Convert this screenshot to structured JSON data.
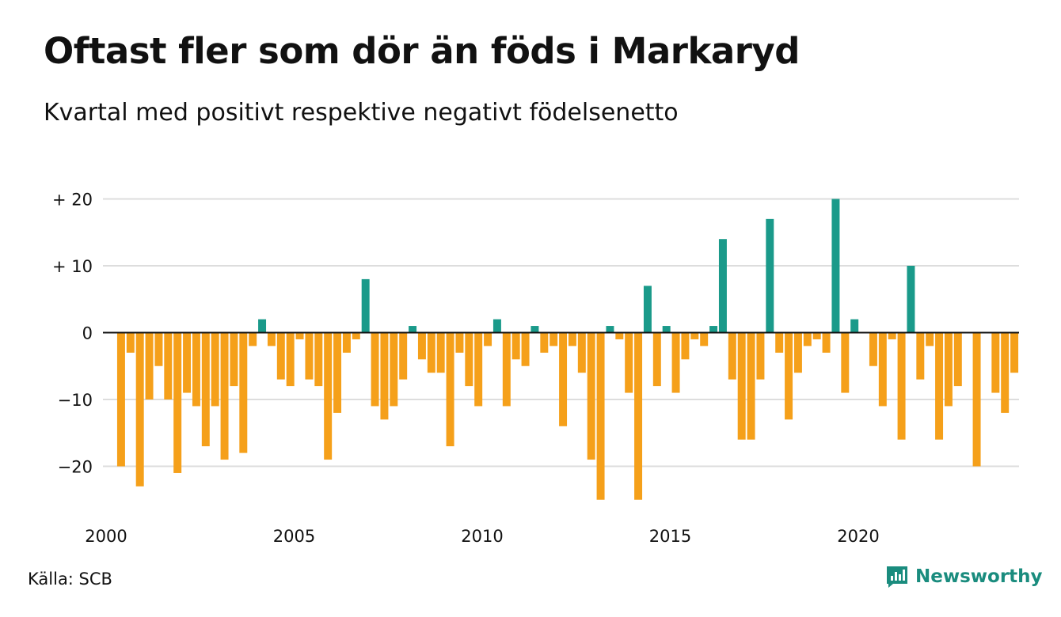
{
  "header": {
    "title": "Oftast fler som dör än föds i Markaryd",
    "subtitle": "Kvartal med positivt respektive negativt födelsenetto"
  },
  "footer": {
    "source": "Källa: SCB",
    "brand": "Newsworthy",
    "brand_icon": "newsworthy-bar-chart-logo-icon"
  },
  "chart_data": {
    "type": "bar",
    "x_tick_labels": [
      "2000",
      "2005",
      "2010",
      "2015",
      "2020"
    ],
    "y_tick_labels": [
      "+ 20",
      "+ 10",
      "0",
      "−10",
      "−20"
    ],
    "y_ticks": [
      20,
      10,
      0,
      -10,
      -20
    ],
    "ylim": [
      -26,
      21
    ],
    "grid": true,
    "colors": {
      "positive": "#1a9a8a",
      "negative": "#f5a01a",
      "grid": "#dddddd",
      "axis": "#111111",
      "brand": "#1a8c7e"
    },
    "quarters_per_year": 4,
    "start_year": 2000,
    "values": [
      -20,
      -3,
      -23,
      -10,
      -5,
      -10,
      -21,
      -9,
      -11,
      -17,
      -11,
      -19,
      -8,
      -18,
      -2,
      2,
      -2,
      -7,
      -8,
      -1,
      -7,
      -8,
      -19,
      -12,
      -3,
      -1,
      8,
      -11,
      -13,
      -11,
      -7,
      1,
      -4,
      -6,
      -6,
      -17,
      -3,
      -8,
      -11,
      -2,
      2,
      -11,
      -4,
      -5,
      1,
      -3,
      -2,
      -14,
      -2,
      -6,
      -19,
      -25,
      1,
      -1,
      -9,
      -25,
      7,
      -8,
      1,
      -9,
      -4,
      -1,
      -2,
      1,
      14,
      -7,
      -16,
      -16,
      -7,
      17,
      -3,
      -13,
      -6,
      -2,
      -1,
      -3,
      20,
      -9,
      2,
      0,
      -5,
      -11,
      -1,
      -16,
      10,
      -7,
      -2,
      -16,
      -11,
      -8,
      0,
      -20,
      0,
      -9,
      -12,
      -6
    ]
  }
}
